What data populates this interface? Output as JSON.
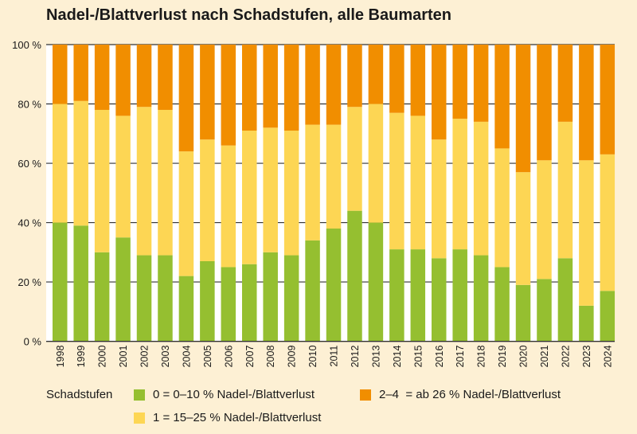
{
  "chart_data": {
    "type": "bar",
    "stacked": true,
    "title": "Nadel-/Blattverlust nach Schadstufen, alle Baumarten",
    "xlabel": "",
    "ylabel": "",
    "ylim": [
      0,
      100
    ],
    "yticks": [
      "0 %",
      "20 %",
      "40 %",
      "60 %",
      "80 %",
      "100 %"
    ],
    "grid": true,
    "legend_position": "bottom",
    "legend_title": "Schadstufen",
    "categories": [
      "1998",
      "1999",
      "2000",
      "2001",
      "2002",
      "2003",
      "2004",
      "2005",
      "2006",
      "2007",
      "2008",
      "2009",
      "2010",
      "2011",
      "2012",
      "2013",
      "2014",
      "2015",
      "2016",
      "2017",
      "2018",
      "2019",
      "2020",
      "2021",
      "2022",
      "2023",
      "2024"
    ],
    "series": [
      {
        "name": "0 = 0–10 % Nadel-/Blattverlust",
        "color": "#95bf30",
        "values": [
          40,
          39,
          30,
          35,
          29,
          29,
          22,
          27,
          25,
          26,
          30,
          29,
          34,
          38,
          44,
          40,
          31,
          31,
          28,
          31,
          29,
          25,
          19,
          21,
          28,
          12,
          17
        ]
      },
      {
        "name": "1 = 15–25 % Nadel-/Blattverlust",
        "color": "#fdd654",
        "values": [
          40,
          42,
          48,
          41,
          50,
          49,
          42,
          41,
          41,
          45,
          42,
          42,
          39,
          35,
          35,
          40,
          46,
          45,
          40,
          44,
          45,
          40,
          38,
          40,
          46,
          49,
          46
        ]
      },
      {
        "name": "2–4  = ab 26 % Nadel-/Blattverlust",
        "color": "#f18e00",
        "values": [
          20,
          19,
          22,
          24,
          21,
          22,
          36,
          32,
          34,
          29,
          28,
          29,
          27,
          27,
          21,
          20,
          23,
          24,
          32,
          25,
          26,
          35,
          43,
          39,
          26,
          39,
          37
        ]
      }
    ]
  }
}
